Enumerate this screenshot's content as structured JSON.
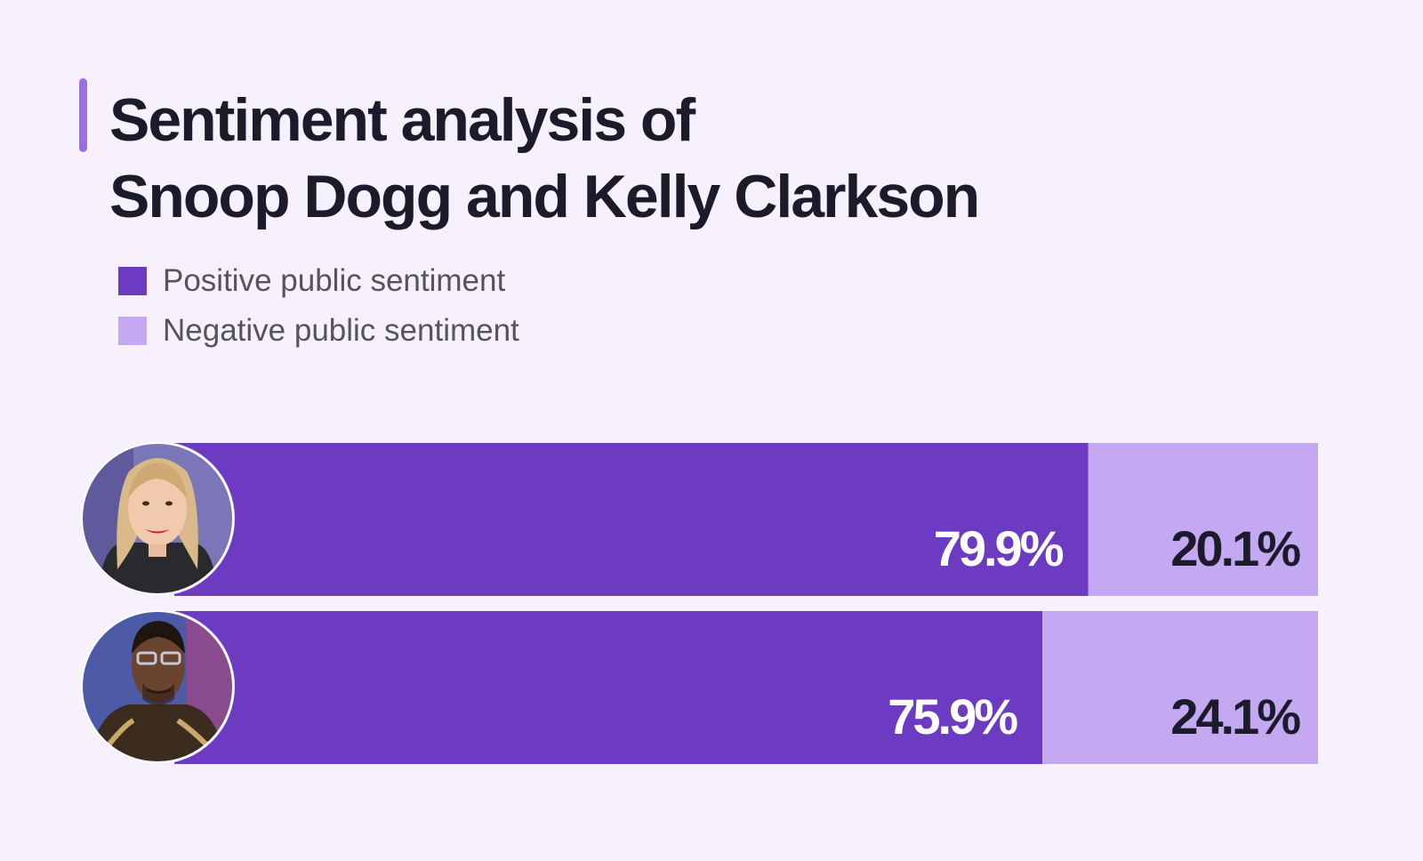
{
  "colors": {
    "positive": "#6c3bc2",
    "negative": "#c4a8f1",
    "positive_text": "#ffffff",
    "negative_text": "#1c1b2b",
    "accent": "#9b6ee8"
  },
  "chart_data": {
    "type": "bar",
    "orientation": "horizontal",
    "stacked": true,
    "title": "Sentiment analysis of Snoop Dogg and Kelly Clarkson",
    "title_lines": [
      "Sentiment analysis of",
      "Snoop Dogg and Kelly Clarkson"
    ],
    "categories": [
      "Kelly Clarkson",
      "Snoop Dogg"
    ],
    "series": [
      {
        "name": "Positive public sentiment",
        "values": [
          79.9,
          75.9
        ],
        "labels": [
          "79.9%",
          "75.9%"
        ]
      },
      {
        "name": "Negative public sentiment",
        "values": [
          20.1,
          24.1
        ],
        "labels": [
          "20.1%",
          "24.1%"
        ]
      }
    ],
    "xlim": [
      0,
      100
    ],
    "legend": [
      "Positive public sentiment",
      "Negative public sentiment"
    ],
    "legend_position": "top-left",
    "grid": false,
    "xlabel": "",
    "ylabel": ""
  }
}
